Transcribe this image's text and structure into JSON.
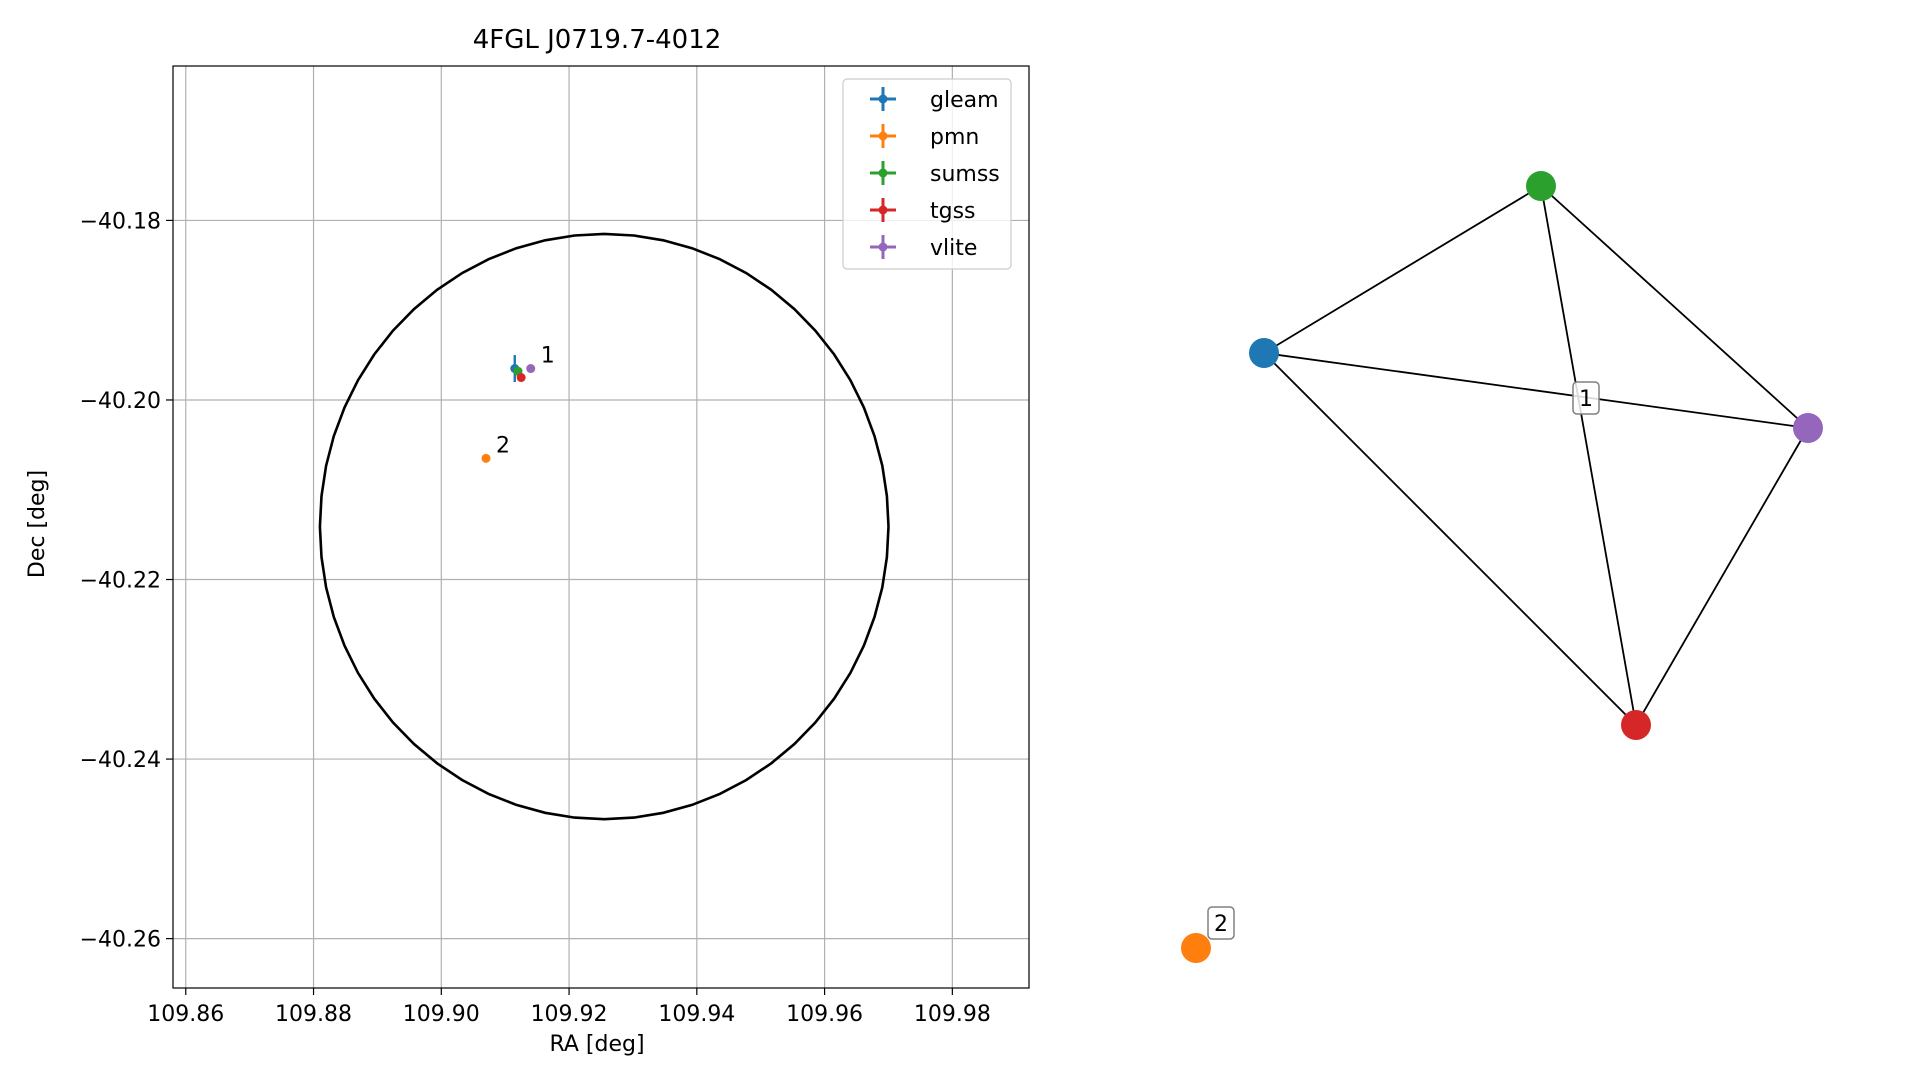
{
  "chart_data": [
    {
      "type": "scatter",
      "title": "4FGL J0719.7-4012",
      "xlabel": "RA [deg]",
      "ylabel": "Dec [deg]",
      "xlim": [
        109.858,
        109.992
      ],
      "ylim": [
        -40.2655,
        -40.1628
      ],
      "xticks": [
        109.86,
        109.88,
        109.9,
        109.92,
        109.94,
        109.96,
        109.98
      ],
      "xtick_labels": [
        "109.86",
        "109.88",
        "109.90",
        "109.92",
        "109.94",
        "109.96",
        "109.98"
      ],
      "yticks": [
        -40.18,
        -40.2,
        -40.22,
        -40.24,
        -40.26
      ],
      "ytick_labels": [
        "−40.18",
        "−40.20",
        "−40.22",
        "−40.24",
        "−40.26"
      ],
      "grid": true,
      "legend_position": "top-right",
      "series": [
        {
          "name": "gleam",
          "color": "#1f77b4",
          "x": 109.9115,
          "y": -40.1965,
          "xerr": 0.0003,
          "yerr": 0.0015
        },
        {
          "name": "pmn",
          "color": "#ff7f0e",
          "x": 109.907,
          "y": -40.2065,
          "xerr": 0,
          "yerr": 0
        },
        {
          "name": "sumss",
          "color": "#2ca02c",
          "x": 109.912,
          "y": -40.1968,
          "xerr": 0.0003,
          "yerr": 0.0005
        },
        {
          "name": "tgss",
          "color": "#d62728",
          "x": 109.9125,
          "y": -40.1975,
          "xerr": 0.0002,
          "yerr": 0.0002
        },
        {
          "name": "vlite",
          "color": "#9467bd",
          "x": 109.914,
          "y": -40.1965,
          "xerr": 0,
          "yerr": 0
        }
      ],
      "annotations": [
        {
          "text": "1",
          "x": 109.914,
          "y": -40.1965
        },
        {
          "text": "2",
          "x": 109.907,
          "y": -40.2065
        }
      ],
      "circle": {
        "center_ra": 109.9255,
        "center_dec": -40.2141,
        "radius_dec": 0.0326,
        "radius_ra": 0.0445
      }
    },
    {
      "type": "network",
      "nodes": [
        {
          "id": "gleam",
          "color": "#1f77b4"
        },
        {
          "id": "pmn",
          "color": "#ff7f0e"
        },
        {
          "id": "sumss",
          "color": "#2ca02c"
        },
        {
          "id": "tgss",
          "color": "#d62728"
        },
        {
          "id": "vlite",
          "color": "#9467bd"
        }
      ],
      "edges": [
        [
          "gleam",
          "sumss"
        ],
        [
          "gleam",
          "vlite"
        ],
        [
          "gleam",
          "tgss"
        ],
        [
          "sumss",
          "vlite"
        ],
        [
          "sumss",
          "tgss"
        ],
        [
          "vlite",
          "tgss"
        ]
      ],
      "labels": [
        "1",
        "2"
      ]
    }
  ]
}
